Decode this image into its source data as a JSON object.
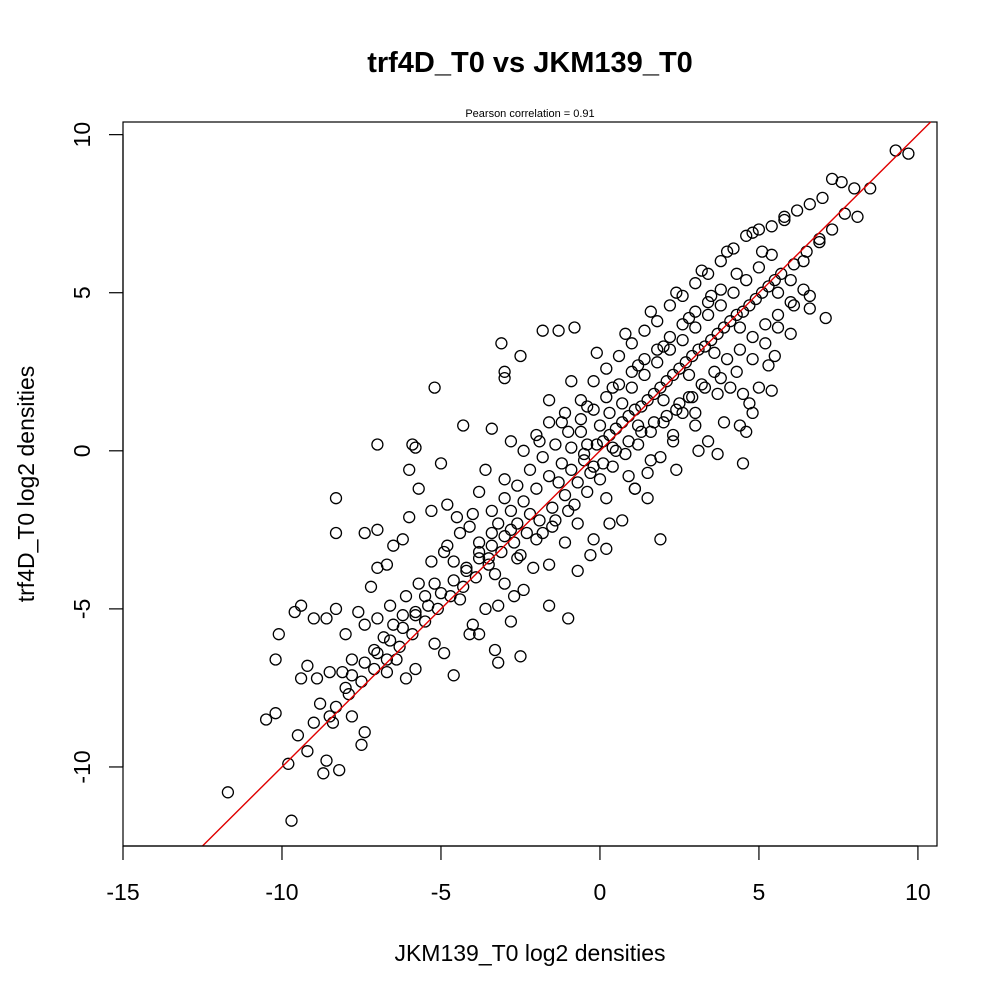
{
  "chart_data": {
    "type": "scatter",
    "title": "trf4D_T0 vs JKM139_T0",
    "subtitle": "Pearson correlation =  0.91",
    "xlabel": "JKM139_T0 log2 densities",
    "ylabel": "trf4D_T0 log2 densities",
    "xlim": [
      -15,
      10.6
    ],
    "ylim": [
      -12.5,
      10.4
    ],
    "xticks": [
      "-15",
      "-10",
      "-5",
      "0",
      "5",
      "10"
    ],
    "yticks": [
      "-10",
      "-5",
      "0",
      "5",
      "10"
    ],
    "grid": false,
    "marker": "open-circle",
    "point_color": "#000000",
    "reference_line": {
      "slope": 1,
      "intercept": 0,
      "color": "#e00000"
    },
    "correlation": 0.91,
    "points": [
      [
        -11.7,
        -10.8
      ],
      [
        -9.7,
        -11.7
      ],
      [
        -9.8,
        -9.9
      ],
      [
        -10.5,
        -8.5
      ],
      [
        -10.2,
        -8.3
      ],
      [
        -10.2,
        -6.6
      ],
      [
        -10.1,
        -5.8
      ],
      [
        -9.5,
        -9.0
      ],
      [
        -9.2,
        -9.5
      ],
      [
        -9.0,
        -8.6
      ],
      [
        -8.7,
        -10.2
      ],
      [
        -8.6,
        -9.8
      ],
      [
        -8.2,
        -10.1
      ],
      [
        -8.4,
        -8.6
      ],
      [
        -8.5,
        -8.4
      ],
      [
        -8.8,
        -8.0
      ],
      [
        -8.0,
        -7.5
      ],
      [
        -7.8,
        -8.4
      ],
      [
        -7.5,
        -9.3
      ],
      [
        -7.4,
        -8.9
      ],
      [
        -9.6,
        -5.1
      ],
      [
        -9.4,
        -4.9
      ],
      [
        -9.0,
        -5.3
      ],
      [
        -8.6,
        -5.3
      ],
      [
        -8.3,
        -5.0
      ],
      [
        -8.0,
        -5.8
      ],
      [
        -9.2,
        -6.8
      ],
      [
        -9.4,
        -7.2
      ],
      [
        -8.9,
        -7.2
      ],
      [
        -8.5,
        -7.0
      ],
      [
        -8.1,
        -7.0
      ],
      [
        -7.8,
        -6.6
      ],
      [
        -7.6,
        -5.1
      ],
      [
        -7.4,
        -5.5
      ],
      [
        -7.2,
        -4.3
      ],
      [
        -7.0,
        -3.7
      ],
      [
        -6.7,
        -3.6
      ],
      [
        -6.5,
        -3.0
      ],
      [
        -6.2,
        -2.8
      ],
      [
        -6.0,
        -2.1
      ],
      [
        -7.4,
        -2.6
      ],
      [
        -7.0,
        -2.5
      ],
      [
        -8.3,
        -2.6
      ],
      [
        -8.3,
        -1.5
      ],
      [
        -7.0,
        0.2
      ],
      [
        -5.9,
        0.2
      ],
      [
        -5.8,
        0.1
      ],
      [
        -6.0,
        -0.6
      ],
      [
        -5.7,
        -1.2
      ],
      [
        -5.0,
        -0.4
      ],
      [
        -5.2,
        2.0
      ],
      [
        -4.3,
        0.8
      ],
      [
        -3.4,
        0.7
      ],
      [
        -3.0,
        2.5
      ],
      [
        -3.1,
        3.4
      ],
      [
        -3.0,
        2.3
      ],
      [
        -2.5,
        3.0
      ],
      [
        -1.8,
        3.8
      ],
      [
        -1.3,
        3.8
      ],
      [
        -0.8,
        3.9
      ],
      [
        -5.3,
        -1.9
      ],
      [
        -4.8,
        -1.7
      ],
      [
        -4.5,
        -2.1
      ],
      [
        -4.1,
        -2.4
      ],
      [
        -3.8,
        -2.9
      ],
      [
        -3.5,
        -3.4
      ],
      [
        -3.3,
        -3.9
      ],
      [
        -3.0,
        -4.2
      ],
      [
        -2.7,
        -4.6
      ],
      [
        -2.4,
        -4.4
      ],
      [
        -4.4,
        -4.7
      ],
      [
        -4.6,
        -3.5
      ],
      [
        -4.9,
        -3.2
      ],
      [
        -5.2,
        -4.2
      ],
      [
        -5.5,
        -4.6
      ],
      [
        -5.8,
        -5.1
      ],
      [
        -6.2,
        -5.2
      ],
      [
        -6.5,
        -5.5
      ],
      [
        -6.8,
        -5.9
      ],
      [
        -7.1,
        -6.3
      ],
      [
        -6.4,
        -6.6
      ],
      [
        -6.7,
        -7.0
      ],
      [
        -6.1,
        -7.2
      ],
      [
        -5.8,
        -6.9
      ],
      [
        -5.2,
        -6.1
      ],
      [
        -4.9,
        -6.4
      ],
      [
        -4.6,
        -7.1
      ],
      [
        -4.1,
        -5.8
      ],
      [
        -3.8,
        -5.8
      ],
      [
        -3.3,
        -6.3
      ],
      [
        -3.2,
        -6.7
      ],
      [
        -2.5,
        -6.5
      ],
      [
        -1.6,
        -4.9
      ],
      [
        -1.0,
        -5.3
      ],
      [
        -0.7,
        -3.8
      ],
      [
        -0.3,
        -3.3
      ],
      [
        0.2,
        -3.1
      ],
      [
        0.7,
        -2.2
      ],
      [
        1.1,
        -1.2
      ],
      [
        1.9,
        -2.8
      ],
      [
        0.3,
        -2.3
      ],
      [
        -0.2,
        -2.8
      ],
      [
        -1.1,
        -2.9
      ],
      [
        -1.6,
        -3.6
      ],
      [
        -2.1,
        -3.7
      ],
      [
        -2.6,
        -3.4
      ],
      [
        -2.8,
        -2.5
      ],
      [
        -3.4,
        -1.9
      ],
      [
        -3.8,
        -1.3
      ],
      [
        -3.6,
        -0.6
      ],
      [
        -3.0,
        -0.9
      ],
      [
        -2.8,
        0.3
      ],
      [
        -2.4,
        0.0
      ],
      [
        -2.0,
        0.5
      ],
      [
        -1.6,
        0.9
      ],
      [
        -1.1,
        1.2
      ],
      [
        -0.6,
        1.6
      ],
      [
        -0.2,
        2.2
      ],
      [
        0.2,
        2.6
      ],
      [
        0.6,
        3.0
      ],
      [
        1.0,
        3.4
      ],
      [
        1.4,
        3.8
      ],
      [
        1.8,
        4.1
      ],
      [
        2.2,
        4.6
      ],
      [
        2.6,
        4.9
      ],
      [
        3.0,
        5.3
      ],
      [
        3.4,
        5.6
      ],
      [
        3.8,
        6.0
      ],
      [
        4.2,
        6.4
      ],
      [
        4.6,
        6.8
      ],
      [
        5.0,
        7.0
      ],
      [
        5.4,
        7.1
      ],
      [
        5.8,
        7.4
      ],
      [
        6.2,
        7.6
      ],
      [
        6.6,
        7.8
      ],
      [
        7.0,
        8.0
      ],
      [
        7.3,
        8.6
      ],
      [
        7.6,
        8.5
      ],
      [
        8.0,
        8.3
      ],
      [
        8.5,
        8.3
      ],
      [
        9.3,
        9.5
      ],
      [
        9.7,
        9.4
      ],
      [
        8.1,
        7.4
      ],
      [
        7.7,
        7.5
      ],
      [
        7.3,
        7.0
      ],
      [
        6.9,
        6.6
      ],
      [
        6.4,
        6.0
      ],
      [
        6.0,
        5.4
      ],
      [
        5.6,
        5.0
      ],
      [
        7.1,
        4.2
      ],
      [
        6.6,
        4.5
      ],
      [
        6.1,
        4.6
      ],
      [
        5.6,
        3.9
      ],
      [
        5.2,
        3.4
      ],
      [
        4.8,
        2.9
      ],
      [
        5.0,
        2.0
      ],
      [
        5.4,
        1.9
      ],
      [
        4.8,
        1.2
      ],
      [
        4.4,
        0.8
      ],
      [
        4.6,
        0.6
      ],
      [
        5.5,
        3.0
      ],
      [
        4.5,
        -0.4
      ],
      [
        3.7,
        -0.1
      ],
      [
        3.4,
        0.3
      ],
      [
        3.0,
        0.8
      ],
      [
        2.6,
        1.2
      ],
      [
        2.3,
        0.3
      ],
      [
        1.9,
        -0.2
      ],
      [
        1.5,
        -0.7
      ],
      [
        1.1,
        -1.2
      ],
      [
        4.7,
        1.5
      ],
      [
        4.1,
        2.0
      ],
      [
        3.8,
        2.3
      ],
      [
        3.3,
        2.0
      ],
      [
        2.9,
        1.7
      ],
      [
        2.5,
        1.5
      ],
      [
        2.1,
        1.1
      ],
      [
        1.7,
        0.9
      ],
      [
        1.3,
        0.6
      ],
      [
        0.9,
        0.3
      ],
      [
        0.5,
        0.0
      ],
      [
        0.1,
        -0.4
      ],
      [
        -0.3,
        -0.7
      ],
      [
        -0.7,
        -1.0
      ],
      [
        -1.1,
        -1.4
      ],
      [
        -1.5,
        -1.8
      ],
      [
        -1.9,
        -2.2
      ],
      [
        -2.3,
        -2.6
      ],
      [
        -2.7,
        -2.9
      ],
      [
        -3.1,
        -3.2
      ],
      [
        -3.5,
        -3.6
      ],
      [
        -3.9,
        -4.0
      ],
      [
        -4.3,
        -4.3
      ],
      [
        -4.7,
        -4.6
      ],
      [
        -5.1,
        -5.0
      ],
      [
        -5.5,
        -5.4
      ],
      [
        -5.9,
        -5.8
      ],
      [
        -6.3,
        -6.2
      ],
      [
        -6.7,
        -6.6
      ],
      [
        -7.1,
        -6.9
      ],
      [
        -7.5,
        -7.3
      ],
      [
        -7.9,
        -7.7
      ],
      [
        -8.3,
        -8.1
      ],
      [
        -0.6,
        0.6
      ],
      [
        -0.4,
        0.2
      ],
      [
        0.0,
        0.8
      ],
      [
        0.3,
        1.2
      ],
      [
        0.7,
        1.5
      ],
      [
        1.0,
        2.0
      ],
      [
        1.4,
        2.4
      ],
      [
        1.8,
        2.8
      ],
      [
        2.2,
        3.2
      ],
      [
        2.6,
        3.5
      ],
      [
        3.0,
        3.9
      ],
      [
        3.4,
        4.3
      ],
      [
        3.8,
        4.6
      ],
      [
        4.2,
        5.0
      ],
      [
        4.6,
        5.4
      ],
      [
        5.0,
        5.8
      ],
      [
        5.4,
        6.2
      ],
      [
        -1.2,
        -0.4
      ],
      [
        -1.6,
        -0.8
      ],
      [
        -2.0,
        -1.2
      ],
      [
        -2.4,
        -1.6
      ],
      [
        -2.8,
        -1.9
      ],
      [
        -3.2,
        -2.3
      ],
      [
        -0.9,
        0.1
      ],
      [
        -0.5,
        -0.3
      ],
      [
        -0.1,
        0.2
      ],
      [
        0.3,
        0.5
      ],
      [
        0.7,
        0.9
      ],
      [
        1.1,
        1.3
      ],
      [
        1.5,
        1.6
      ],
      [
        1.9,
        2.0
      ],
      [
        2.3,
        2.4
      ],
      [
        2.7,
        2.8
      ],
      [
        3.1,
        3.2
      ],
      [
        3.5,
        3.5
      ],
      [
        3.9,
        3.9
      ],
      [
        4.3,
        4.3
      ],
      [
        4.7,
        4.6
      ],
      [
        5.1,
        5.0
      ],
      [
        5.5,
        5.4
      ],
      [
        -1.4,
        -2.2
      ],
      [
        -1.8,
        -2.6
      ],
      [
        -0.8,
        -1.7
      ],
      [
        -0.4,
        -1.3
      ],
      [
        0.0,
        -0.9
      ],
      [
        0.4,
        -0.5
      ],
      [
        0.8,
        -0.1
      ],
      [
        1.2,
        0.2
      ],
      [
        1.6,
        0.6
      ],
      [
        2.0,
        0.9
      ],
      [
        2.4,
        1.3
      ],
      [
        2.8,
        1.7
      ],
      [
        3.2,
        2.1
      ],
      [
        3.6,
        2.5
      ],
      [
        4.0,
        2.9
      ],
      [
        4.4,
        3.2
      ],
      [
        4.8,
        3.6
      ],
      [
        5.2,
        4.0
      ],
      [
        5.6,
        4.3
      ],
      [
        6.0,
        4.7
      ],
      [
        6.4,
        5.1
      ],
      [
        -2.2,
        -0.6
      ],
      [
        -1.8,
        -0.2
      ],
      [
        -1.4,
        0.2
      ],
      [
        -1.0,
        0.6
      ],
      [
        -0.6,
        1.0
      ],
      [
        -0.2,
        1.3
      ],
      [
        0.2,
        1.7
      ],
      [
        0.6,
        2.1
      ],
      [
        1.0,
        2.5
      ],
      [
        1.4,
        2.9
      ],
      [
        1.8,
        3.2
      ],
      [
        2.2,
        3.6
      ],
      [
        2.6,
        4.0
      ],
      [
        3.0,
        4.4
      ],
      [
        3.4,
        4.7
      ],
      [
        3.8,
        5.1
      ],
      [
        -2.6,
        -1.1
      ],
      [
        -3.0,
        -1.5
      ],
      [
        -3.4,
        -2.6
      ],
      [
        -3.8,
        -3.2
      ],
      [
        -4.2,
        -3.7
      ],
      [
        -2.0,
        -2.8
      ],
      [
        -2.5,
        -3.3
      ],
      [
        -1.3,
        -1.0
      ],
      [
        -0.9,
        -0.6
      ],
      [
        -0.5,
        -0.1
      ],
      [
        0.1,
        0.3
      ],
      [
        0.5,
        0.7
      ],
      [
        0.9,
        1.1
      ],
      [
        1.3,
        1.4
      ],
      [
        1.7,
        1.8
      ],
      [
        2.1,
        2.2
      ],
      [
        2.5,
        2.6
      ],
      [
        2.9,
        3.0
      ],
      [
        3.3,
        3.3
      ],
      [
        3.7,
        3.7
      ],
      [
        4.1,
        4.1
      ],
      [
        4.5,
        4.4
      ],
      [
        4.9,
        4.8
      ],
      [
        5.3,
        5.2
      ],
      [
        5.7,
        5.6
      ],
      [
        6.1,
        5.9
      ],
      [
        6.5,
        6.3
      ],
      [
        6.9,
        6.7
      ],
      [
        -0.2,
        -0.5
      ],
      [
        0.4,
        0.1
      ],
      [
        1.2,
        0.8
      ],
      [
        2.0,
        1.6
      ],
      [
        2.8,
        2.4
      ],
      [
        3.6,
        3.1
      ],
      [
        4.4,
        3.9
      ],
      [
        -1.0,
        -1.9
      ],
      [
        -1.5,
        -2.4
      ],
      [
        -0.7,
        -2.3
      ],
      [
        0.2,
        -1.5
      ],
      [
        0.9,
        -0.8
      ],
      [
        1.6,
        -0.3
      ],
      [
        2.3,
        0.5
      ],
      [
        3.0,
        1.2
      ],
      [
        3.7,
        1.8
      ],
      [
        4.3,
        2.5
      ],
      [
        -1.9,
        0.3
      ],
      [
        -1.2,
        0.9
      ],
      [
        -0.4,
        1.4
      ],
      [
        0.4,
        2.0
      ],
      [
        1.2,
        2.7
      ],
      [
        2.0,
        3.3
      ],
      [
        2.8,
        4.2
      ],
      [
        3.5,
        4.9
      ],
      [
        4.3,
        5.6
      ],
      [
        5.1,
        6.3
      ],
      [
        -2.2,
        -2.0
      ],
      [
        -2.6,
        -2.3
      ],
      [
        -3.0,
        -2.7
      ],
      [
        -3.4,
        -3.0
      ],
      [
        -3.8,
        -3.4
      ],
      [
        -4.2,
        -3.8
      ],
      [
        -4.6,
        -4.1
      ],
      [
        -5.0,
        -4.5
      ],
      [
        -5.4,
        -4.9
      ],
      [
        -5.8,
        -5.2
      ],
      [
        -6.2,
        -5.6
      ],
      [
        -6.6,
        -6.0
      ],
      [
        -7.0,
        -6.4
      ],
      [
        -7.4,
        -6.7
      ],
      [
        -7.8,
        -7.1
      ],
      [
        -4.0,
        -2.0
      ],
      [
        -4.4,
        -2.6
      ],
      [
        -4.8,
        -3.0
      ],
      [
        -5.3,
        -3.5
      ],
      [
        -5.7,
        -4.2
      ],
      [
        -6.1,
        -4.6
      ],
      [
        -6.6,
        -4.9
      ],
      [
        -7.0,
        -5.3
      ],
      [
        -3.2,
        -4.9
      ],
      [
        -2.8,
        -5.4
      ],
      [
        -3.6,
        -5.0
      ],
      [
        -4.0,
        -5.5
      ],
      [
        1.5,
        -1.5
      ],
      [
        2.4,
        -0.6
      ],
      [
        3.1,
        0.0
      ],
      [
        3.9,
        0.9
      ],
      [
        4.5,
        1.8
      ],
      [
        5.3,
        2.7
      ],
      [
        6.0,
        3.7
      ],
      [
        6.6,
        4.9
      ],
      [
        -1.6,
        1.6
      ],
      [
        -0.9,
        2.2
      ],
      [
        -0.1,
        3.1
      ],
      [
        0.8,
        3.7
      ],
      [
        1.6,
        4.4
      ],
      [
        2.4,
        5.0
      ],
      [
        3.2,
        5.7
      ],
      [
        4.0,
        6.3
      ],
      [
        4.8,
        6.9
      ],
      [
        5.8,
        7.3
      ]
    ]
  }
}
